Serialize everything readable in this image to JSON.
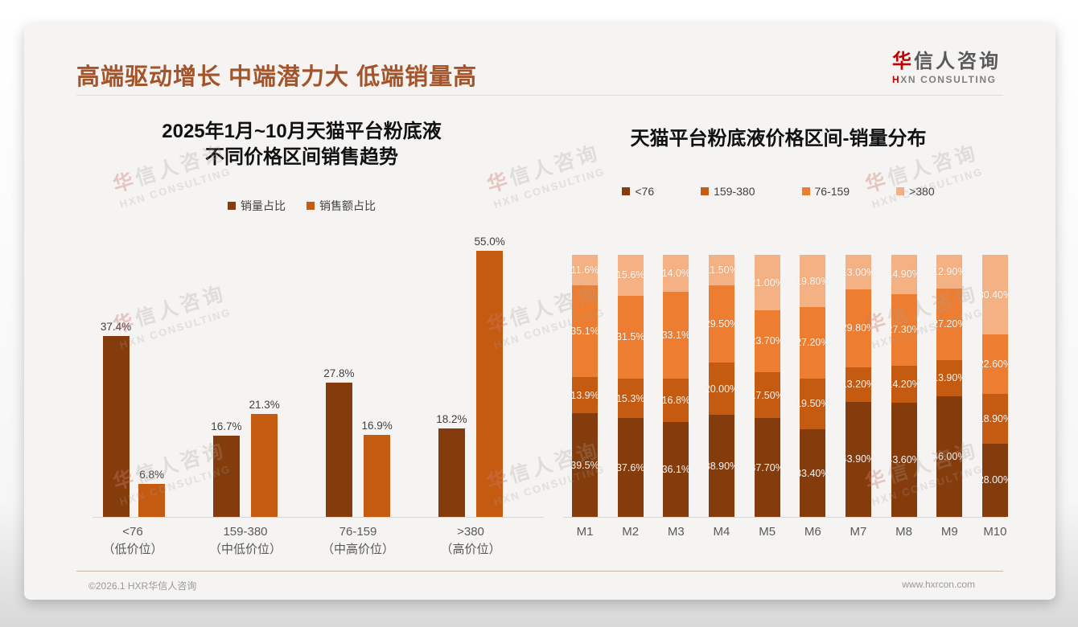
{
  "page": {
    "title": "高端驱动增长 中端潜力大 低端销量高",
    "logo": {
      "zh_first": "华",
      "zh_rest": "信人咨询",
      "en_first": "H",
      "en_rest": "XN CONSULTING"
    },
    "watermark": {
      "line1_first": "华",
      "line1_rest": "信人咨询",
      "line2": "HXN CONSULTING"
    },
    "footer": {
      "left": "©2026.1 HXR华信人咨询",
      "right": "www.hxrcon.com"
    }
  },
  "colors": {
    "title_accent": "#a4542a",
    "logo_red": "#c00000",
    "dark_brown": "#843C0C",
    "dark_orange": "#C55A11",
    "mid_orange": "#ED7D31",
    "light_orange": "#F4B183",
    "axis": "#d6d6d6",
    "footer_rule": "#c9b7a5"
  },
  "chart_data": [
    {
      "type": "bar",
      "stacked": false,
      "title_lines": [
        "2025年1月~10月天猫平台粉底液",
        "不同价格区间销售趋势"
      ],
      "categories": [
        "<76",
        "159-380",
        "76-159",
        ">380"
      ],
      "category_sublabels": [
        "（低价位）",
        "（中低价位）",
        "（中高价位）",
        "（高价位）"
      ],
      "ylim": [
        0,
        60
      ],
      "grid": false,
      "legend_position": "top",
      "series": [
        {
          "name": "销量占比",
          "color": "#843C0C",
          "values": [
            37.4,
            16.7,
            27.8,
            18.2
          ],
          "labels": [
            "37.4%",
            "16.7%",
            "27.8%",
            "18.2%"
          ]
        },
        {
          "name": "销售额占比",
          "color": "#C55A11",
          "values": [
            6.8,
            21.3,
            16.9,
            55.0
          ],
          "labels": [
            "6.8%",
            "21.3%",
            "16.9%",
            "55.0%"
          ]
        }
      ]
    },
    {
      "type": "bar",
      "stacked": true,
      "title": "天猫平台粉底液价格区间-销量分布",
      "categories": [
        "M1",
        "M2",
        "M3",
        "M4",
        "M5",
        "M6",
        "M7",
        "M8",
        "M9",
        "M10"
      ],
      "ylim": [
        0,
        100
      ],
      "grid": false,
      "legend_position": "top",
      "series": [
        {
          "name": "<76",
          "color": "#843C0C",
          "values": [
            39.5,
            37.6,
            36.1,
            38.9,
            37.7,
            33.4,
            43.9,
            43.6,
            46.0,
            28.0
          ],
          "labels": [
            "39.5%",
            "37.6%",
            "36.1%",
            "38.90%",
            "37.70%",
            "33.40%",
            "43.90%",
            "43.60%",
            "46.00%",
            "28.00%"
          ]
        },
        {
          "name": "159-380",
          "color": "#C55A11",
          "values": [
            13.9,
            15.3,
            16.8,
            20.0,
            17.5,
            19.5,
            13.2,
            14.2,
            13.9,
            18.9
          ],
          "labels": [
            "13.9%",
            "15.3%",
            "16.8%",
            "20.00%",
            "17.50%",
            "19.50%",
            "13.20%",
            "14.20%",
            "13.90%",
            "18.90%"
          ]
        },
        {
          "name": "76-159",
          "color": "#ED7D31",
          "values": [
            35.1,
            31.5,
            33.1,
            29.5,
            23.7,
            27.2,
            29.8,
            27.3,
            27.2,
            22.6
          ],
          "labels": [
            "35.1%",
            "31.5%",
            "33.1%",
            "29.50%",
            "23.70%",
            "27.20%",
            "29.80%",
            "27.30%",
            "27.20%",
            "22.60%"
          ]
        },
        {
          "name": ">380",
          "color": "#F4B183",
          "values": [
            11.6,
            15.6,
            14.0,
            11.5,
            21.0,
            19.8,
            13.0,
            14.9,
            12.9,
            30.4
          ],
          "labels": [
            "11.6%",
            "15.6%",
            "14.0%",
            "11.50%",
            "21.00%",
            "19.80%",
            "13.00%",
            "14.90%",
            "12.90%",
            "30.40%"
          ]
        }
      ]
    }
  ]
}
